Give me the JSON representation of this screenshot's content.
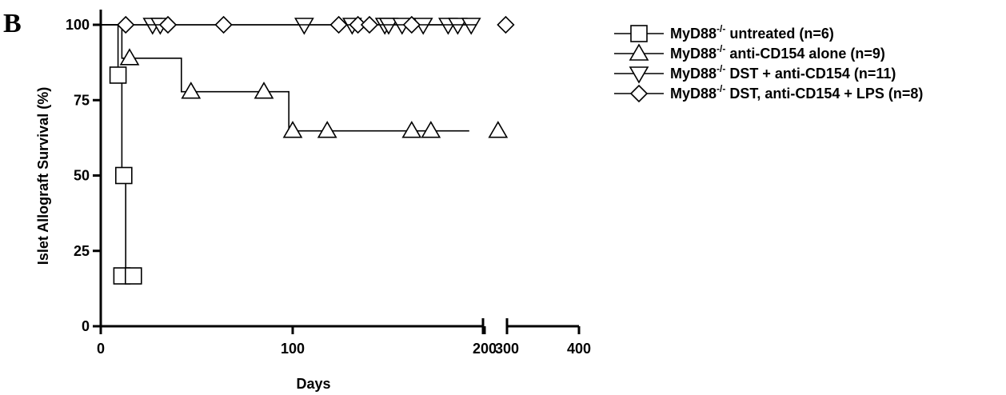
{
  "panel_label": "B",
  "chart_data": {
    "type": "line",
    "subtype": "kaplan-meier survival",
    "xlabel": "Days",
    "ylabel": "Islet Allograft Survival (%)",
    "ylim": [
      0,
      100
    ],
    "x_segments": [
      [
        0,
        260
      ],
      [
        300,
        400
      ]
    ],
    "x_axis_break": true,
    "x_ticks": [
      0,
      100,
      200,
      300,
      400
    ],
    "x_tick_labels": [
      "0",
      "100",
      "200",
      "300",
      "400"
    ],
    "y_ticks": [
      0,
      25,
      50,
      75,
      100
    ],
    "y_tick_labels": [
      "0",
      "25",
      "50",
      "75",
      "100"
    ],
    "grid": false,
    "legend_position": "right",
    "series": [
      {
        "name_parts": [
          "MyD88",
          "-/-",
          " untreated (n=6)"
        ],
        "marker": "square",
        "steps": [
          [
            0,
            100
          ],
          [
            9,
            83.3
          ],
          [
            11,
            50
          ],
          [
            13,
            16.7
          ],
          [
            15,
            16.7
          ]
        ],
        "markers": [
          [
            9,
            83.3
          ],
          [
            12,
            50
          ],
          [
            11,
            16.7
          ],
          [
            17,
            16.7
          ]
        ]
      },
      {
        "name_parts": [
          "MyD88",
          "-/-",
          " anti-CD154 alone (n=9)"
        ],
        "marker": "triangle-up",
        "steps": [
          [
            0,
            100
          ],
          [
            11,
            88.9
          ],
          [
            42,
            77.8
          ],
          [
            98,
            64.8
          ],
          [
            192,
            64.8
          ]
        ],
        "markers": [
          [
            15,
            88.9
          ],
          [
            47,
            77.8
          ],
          [
            85,
            77.8
          ],
          [
            100,
            64.8
          ],
          [
            118,
            64.8
          ],
          [
            162,
            64.8
          ],
          [
            172,
            64.8
          ],
          [
            207,
            64.8
          ]
        ]
      },
      {
        "name_parts": [
          "MyD88",
          "-/-",
          " DST + anti-CD154 (n=11)"
        ],
        "marker": "triangle-down",
        "steps": [
          [
            0,
            100
          ],
          [
            193,
            100
          ]
        ],
        "markers": [
          [
            27,
            100
          ],
          [
            31,
            100
          ],
          [
            106,
            100
          ],
          [
            131,
            100
          ],
          [
            148,
            100
          ],
          [
            150,
            100
          ],
          [
            157,
            100
          ],
          [
            168,
            100
          ],
          [
            181,
            100
          ],
          [
            186,
            100
          ],
          [
            193,
            100
          ]
        ]
      },
      {
        "name_parts": [
          "MyD88",
          "-/-",
          " DST, anti-CD154 + LPS (n=8)"
        ],
        "marker": "diamond",
        "steps": [
          [
            0,
            100
          ],
          [
            196,
            100
          ]
        ],
        "markers": [
          [
            13,
            100
          ],
          [
            35,
            100
          ],
          [
            64,
            100
          ],
          [
            124,
            100
          ],
          [
            134,
            100
          ],
          [
            140,
            100
          ],
          [
            162,
            100
          ],
          [
            211,
            100
          ]
        ]
      }
    ]
  }
}
